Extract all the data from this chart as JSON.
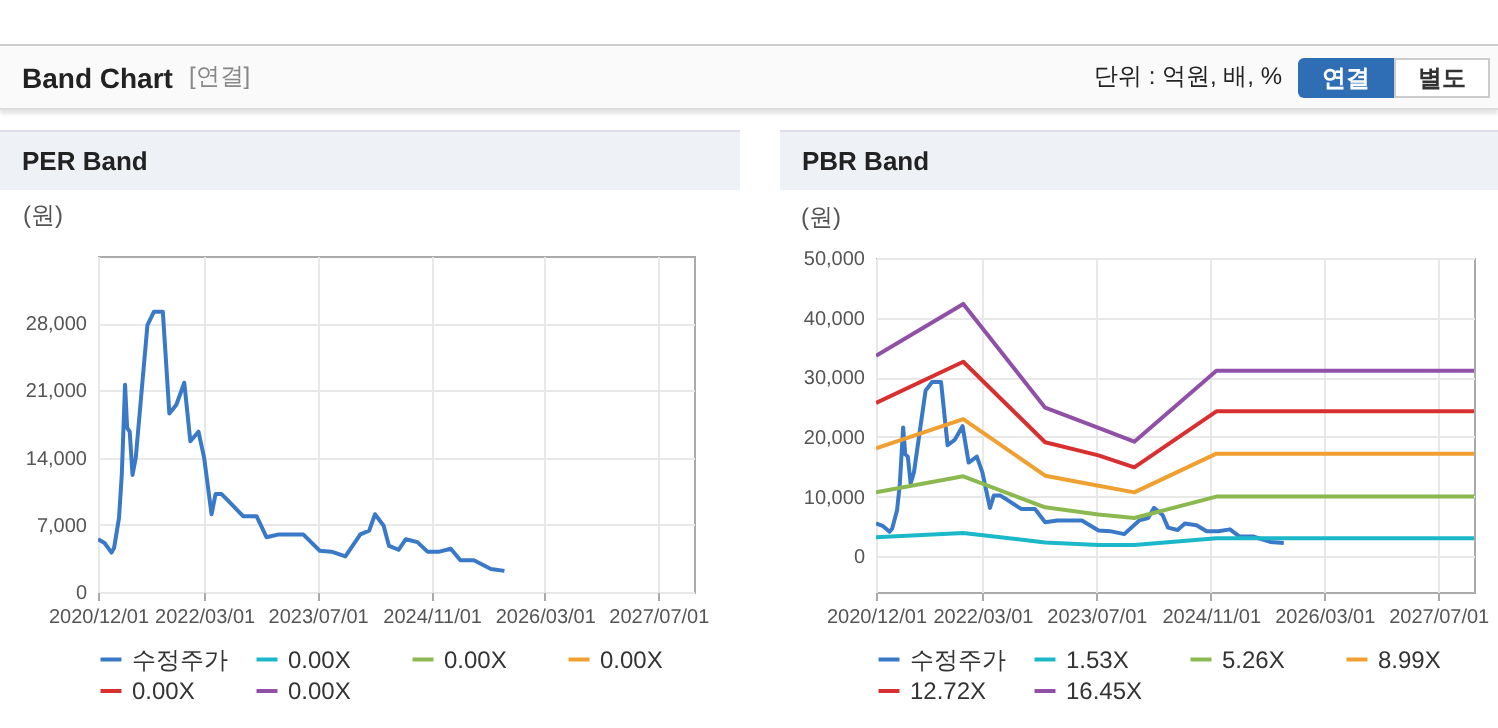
{
  "chart_data": [
    {
      "type": "line",
      "title": "PER Band",
      "ylabel": "(원)",
      "annotations": [
        "Band Chart",
        "[연결]",
        "단위 : 억원, 배, %",
        "연결",
        "별도"
      ],
      "xlim": [
        "2020-12-01",
        "2027-12-01"
      ],
      "xticks": [
        {
          "value": "2020-12-01",
          "label": "2020/12/01"
        },
        {
          "value": "2022-03-01",
          "label": "2022/03/01"
        },
        {
          "value": "2023-07-01",
          "label": "2023/07/01"
        },
        {
          "value": "2024-11-01",
          "label": "2024/11/01"
        },
        {
          "value": "2026-03-01",
          "label": "2026/03/01"
        },
        {
          "value": "2027-07-01",
          "label": "2027/07/01"
        }
      ],
      "ylim": [
        0,
        35000
      ],
      "yticks": [
        0,
        {
          "value": 7000,
          "label": "7,000"
        },
        {
          "value": 14000,
          "label": "14,000"
        },
        {
          "value": 21000,
          "label": "21,000"
        },
        {
          "value": 28000,
          "label": "28,000"
        }
      ],
      "grid": true,
      "legend": "bottom",
      "series": [
        {
          "name": "수정주가",
          "color": "#3a78c8",
          "x": [
            "2020-12-01",
            "2020-12-29",
            "2021-01-28",
            "2021-02-08",
            "2021-03-01",
            "2021-03-13",
            "2021-03-27",
            "2021-04-05",
            "2021-04-16",
            "2021-04-28",
            "2021-05-12",
            "2021-06-02",
            "2021-07-01",
            "2021-07-29",
            "2021-09-05",
            "2021-09-28",
            "2021-10-03",
            "2021-11-02",
            "2021-12-06",
            "2022-01-01",
            "2022-02-05",
            "2022-03-01",
            "2022-04-02",
            "2022-04-19",
            "2022-05-15",
            "2022-06-13",
            "2022-08-15",
            "2022-10-12",
            "2022-11-24",
            "2023-01-15",
            "2023-04-30",
            "2023-07-10",
            "2023-08-29",
            "2023-10-28",
            "2023-12-31",
            "2024-02-07",
            "2024-03-03",
            "2024-04-09",
            "2024-05-02",
            "2024-06-12",
            "2024-07-13",
            "2024-09-01",
            "2024-10-14",
            "2024-12-04",
            "2025-01-22",
            "2025-03-04",
            "2025-05-01",
            "2025-07-13",
            "2025-09-09"
          ],
          "values": [
            5500,
            5100,
            4100,
            4600,
            7700,
            12200,
            21600,
            17100,
            16700,
            12200,
            14000,
            19800,
            27800,
            29200,
            29200,
            20500,
            18600,
            19500,
            21800,
            15700,
            16700,
            14000,
            8100,
            10200,
            10200,
            9500,
            7900,
            7900,
            5700,
            6000,
            6000,
            4300,
            4200,
            3700,
            6000,
            6400,
            8100,
            6900,
            4800,
            4400,
            5500,
            5200,
            4200,
            4200,
            4500,
            3300,
            3300,
            2400,
            2200
          ]
        },
        {
          "name": "0.00X",
          "color": "#1ab8c8"
        },
        {
          "name": "0.00X",
          "color": "#8cb850"
        },
        {
          "name": "0.00X",
          "color": "#f0a030"
        },
        {
          "name": "0.00X",
          "color": "#d83030"
        },
        {
          "name": "0.00X",
          "color": "#9050a8"
        }
      ]
    },
    {
      "type": "line",
      "title": "PBR Band",
      "ylabel": "(원)",
      "xlim": [
        "2020-12-01",
        "2027-12-01"
      ],
      "xticks": [
        {
          "value": "2020-12-01",
          "label": "2020/12/01"
        },
        {
          "value": "2022-03-01",
          "label": "2022/03/01"
        },
        {
          "value": "2023-07-01",
          "label": "2023/07/01"
        },
        {
          "value": "2024-11-01",
          "label": "2024/11/01"
        },
        {
          "value": "2026-03-01",
          "label": "2026/03/01"
        },
        {
          "value": "2027-07-01",
          "label": "2027/07/01"
        }
      ],
      "ylim": [
        -6000,
        50000
      ],
      "yticks": [
        0,
        {
          "value": 10000,
          "label": "10,000"
        },
        {
          "value": 20000,
          "label": "20,000"
        },
        {
          "value": 30000,
          "label": "30,000"
        },
        {
          "value": 40000,
          "label": "40,000"
        },
        {
          "value": 50000,
          "label": "50,000"
        }
      ],
      "grid": true,
      "legend": "bottom",
      "series": [
        {
          "name": "수정주가",
          "color": "#3a78c8",
          "x": [
            "2020-12-01",
            "2020-12-29",
            "2021-01-28",
            "2021-02-08",
            "2021-03-01",
            "2021-03-13",
            "2021-03-27",
            "2021-04-05",
            "2021-04-16",
            "2021-04-28",
            "2021-05-12",
            "2021-06-02",
            "2021-07-01",
            "2021-07-29",
            "2021-09-05",
            "2021-09-28",
            "2021-10-03",
            "2021-11-02",
            "2021-12-06",
            "2022-01-01",
            "2022-02-05",
            "2022-03-01",
            "2022-04-02",
            "2022-04-19",
            "2022-05-15",
            "2022-06-13",
            "2022-08-15",
            "2022-10-12",
            "2022-11-24",
            "2023-01-15",
            "2023-04-30",
            "2023-07-10",
            "2023-08-29",
            "2023-10-28",
            "2023-12-31",
            "2024-02-07",
            "2024-03-03",
            "2024-04-09",
            "2024-05-02",
            "2024-06-12",
            "2024-07-13",
            "2024-09-01",
            "2024-10-14",
            "2024-12-04",
            "2025-01-22",
            "2025-03-04",
            "2025-05-01",
            "2025-07-13",
            "2025-09-09"
          ],
          "values": [
            5500,
            5100,
            4100,
            4600,
            7700,
            12200,
            21600,
            17100,
            16700,
            12200,
            14000,
            19800,
            27800,
            29200,
            29200,
            20500,
            18600,
            19500,
            21800,
            15700,
            16700,
            14000,
            8100,
            10200,
            10200,
            9500,
            7900,
            7900,
            5700,
            6000,
            6000,
            4300,
            4200,
            3700,
            6000,
            6400,
            8100,
            6900,
            4800,
            4400,
            5500,
            5200,
            4200,
            4200,
            4500,
            3300,
            3300,
            2400,
            2200
          ]
        },
        {
          "name": "1.53X",
          "color": "#1ab8c8",
          "x": [
            "2020-12-01",
            "2021-12-09",
            "2022-11-24",
            "2023-07-10",
            "2023-12-10",
            "2024-11-25",
            "2027-12-01"
          ],
          "values": [
            3200,
            3900,
            2300,
            1900,
            1900,
            3000,
            3000
          ]
        },
        {
          "name": "5.26X",
          "color": "#8cb850",
          "x": [
            "2020-12-01",
            "2021-12-09",
            "2022-11-24",
            "2023-07-10",
            "2023-12-10",
            "2024-11-25",
            "2027-12-01"
          ],
          "values": [
            10700,
            13400,
            8200,
            7000,
            6400,
            10000,
            10000
          ]
        },
        {
          "name": "8.99X",
          "color": "#f0a030",
          "x": [
            "2020-12-01",
            "2021-12-09",
            "2022-11-24",
            "2023-07-10",
            "2023-12-10",
            "2024-11-25",
            "2027-12-01"
          ],
          "values": [
            18100,
            23000,
            13500,
            11800,
            10700,
            17200,
            17200
          ]
        },
        {
          "name": "12.72X",
          "color": "#d83030",
          "x": [
            "2020-12-01",
            "2021-12-09",
            "2022-11-24",
            "2023-07-10",
            "2023-12-10",
            "2024-11-25",
            "2027-12-01"
          ],
          "values": [
            25700,
            32600,
            19100,
            16900,
            14900,
            24300,
            24300
          ]
        },
        {
          "name": "16.45X",
          "color": "#9050a8",
          "x": [
            "2020-12-01",
            "2021-12-09",
            "2022-11-24",
            "2023-07-10",
            "2023-12-10",
            "2024-11-25",
            "2027-12-01"
          ],
          "values": [
            33600,
            42300,
            24900,
            21500,
            19200,
            31100,
            31100
          ]
        }
      ]
    }
  ]
}
